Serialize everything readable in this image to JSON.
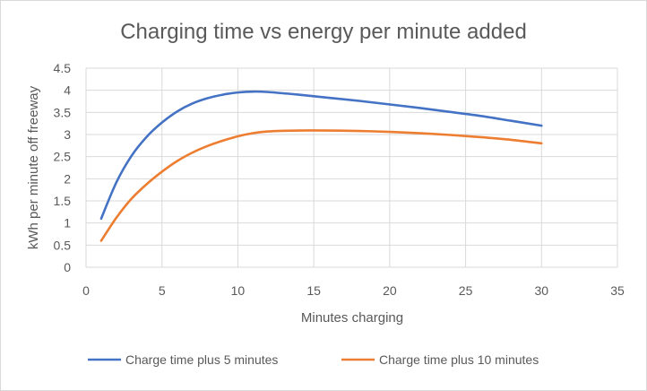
{
  "chart_data": {
    "type": "line",
    "title": "Charging time vs energy per minute added",
    "xlabel": "Minutes charging",
    "ylabel": "kWh per minute off freeway",
    "xlim": [
      0,
      35
    ],
    "ylim": [
      0,
      4.5
    ],
    "x_ticks": [
      "0",
      "5",
      "10",
      "15",
      "20",
      "25",
      "30",
      "35"
    ],
    "y_ticks": [
      "0",
      "0.5",
      "1",
      "1.5",
      "2",
      "2.5",
      "3",
      "3.5",
      "4",
      "4.5"
    ],
    "grid": true,
    "legend_position": "bottom",
    "series": [
      {
        "name": "Charge time plus 5 minutes",
        "color": "#4472c4",
        "x": [
          1,
          2,
          3,
          4,
          5,
          6,
          7,
          8,
          9,
          10,
          11,
          12,
          14,
          16,
          18,
          20,
          22,
          24,
          26,
          28,
          30
        ],
        "y": [
          1.1,
          1.92,
          2.52,
          2.95,
          3.27,
          3.52,
          3.7,
          3.82,
          3.9,
          3.95,
          3.97,
          3.96,
          3.9,
          3.83,
          3.76,
          3.68,
          3.6,
          3.51,
          3.42,
          3.31,
          3.2
        ]
      },
      {
        "name": "Charge time plus 10 minutes",
        "color": "#ed7d31",
        "x": [
          1,
          2,
          3,
          4,
          5,
          6,
          7,
          8,
          9,
          10,
          11,
          12,
          14,
          16,
          18,
          20,
          22,
          24,
          26,
          28,
          30
        ],
        "y": [
          0.6,
          1.12,
          1.55,
          1.88,
          2.16,
          2.4,
          2.59,
          2.74,
          2.86,
          2.96,
          3.03,
          3.07,
          3.09,
          3.09,
          3.08,
          3.06,
          3.03,
          2.99,
          2.94,
          2.88,
          2.8
        ]
      }
    ]
  }
}
